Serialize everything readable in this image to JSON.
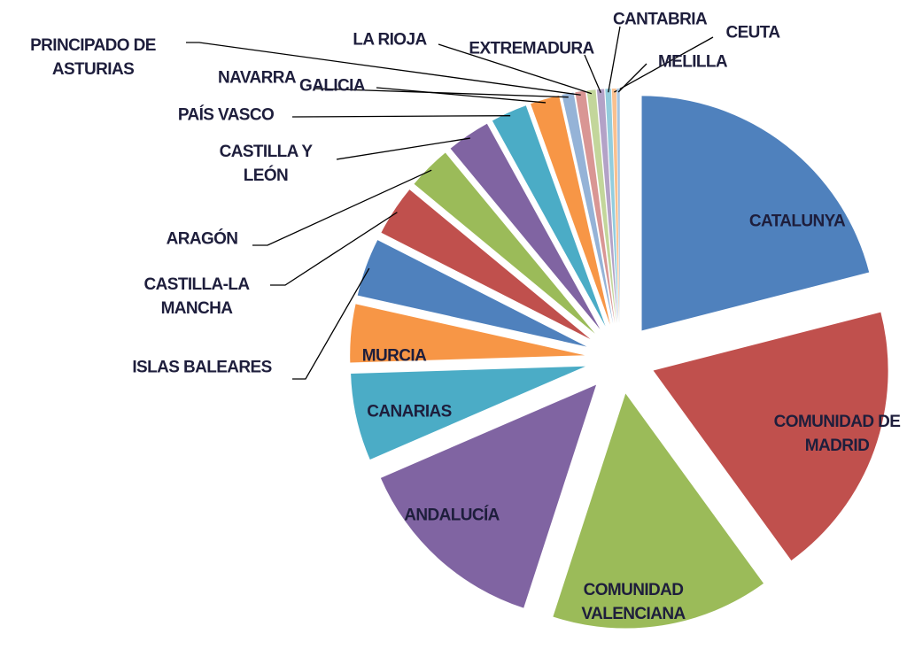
{
  "chart_data": {
    "type": "pie",
    "categories": [
      "CATALUNYA",
      "COMUNIDAD DE MADRID",
      "COMUNIDAD VALENCIANA",
      "ANDALUCÍA",
      "CANARIAS",
      "MURCIA",
      "ISLAS BALEARES",
      "CASTILLA-LA MANCHA",
      "ARAGÓN",
      "CASTILLA Y LEÓN",
      "PAÍS VASCO",
      "GALICIA",
      "NAVARRA",
      "PRINCIPADO DE ASTURIAS",
      "LA RIOJA",
      "EXTREMADURA",
      "CANTABRIA",
      "CEUTA",
      "MELILLA"
    ],
    "values": [
      21,
      19,
      15,
      13.5,
      6,
      4,
      4,
      3.5,
      3,
      3,
      2.5,
      2,
      0.8,
      0.7,
      0.6,
      0.5,
      0.4,
      0.3,
      0.2
    ],
    "colors": [
      "#4f81bd",
      "#c0504d",
      "#9bbb59",
      "#8064a2",
      "#4bacc6",
      "#f79646",
      "#4f81bd",
      "#c0504d",
      "#9bbb59",
      "#8064a2",
      "#4bacc6",
      "#f79646",
      "#95b3d7",
      "#d99694",
      "#c3d69b",
      "#b3a2c7",
      "#93cddd",
      "#fac08f",
      "#a6c4e0"
    ]
  }
}
